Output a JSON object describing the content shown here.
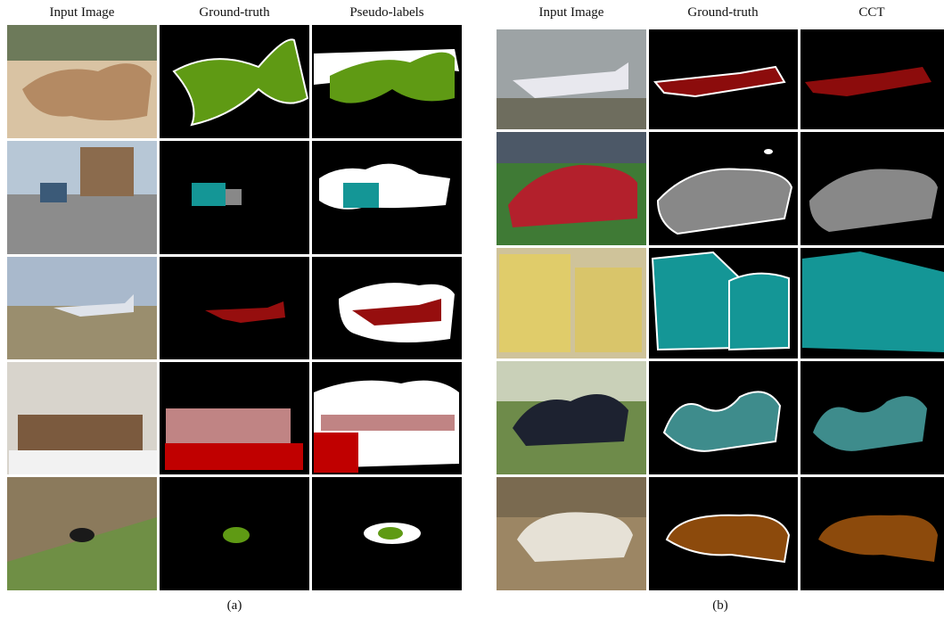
{
  "panel_a": {
    "headers": [
      "Input Image",
      "Ground-truth",
      "Pseudo-labels"
    ],
    "caption": "(a)"
  },
  "panel_b": {
    "headers": [
      "Input Image",
      "Ground-truth",
      "CCT"
    ],
    "caption": "(b)"
  }
}
